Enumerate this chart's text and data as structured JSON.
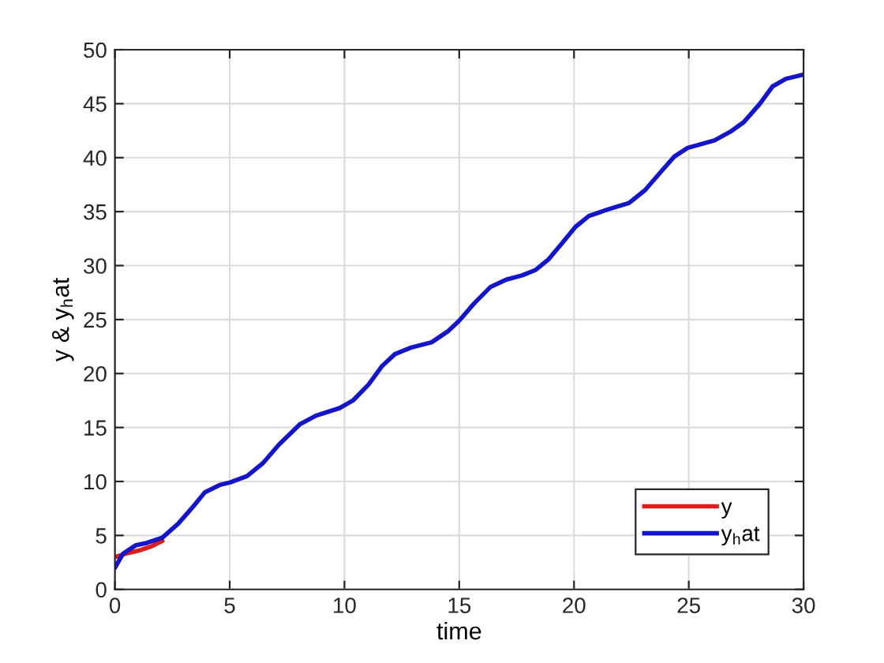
{
  "chart_data": {
    "type": "line",
    "xlabel": "time",
    "ylabel": "y & y$_{h}$at",
    "xlim": [
      0,
      30
    ],
    "ylim": [
      0,
      50
    ],
    "xticks": [
      0,
      5,
      10,
      15,
      20,
      25,
      30
    ],
    "yticks": [
      0,
      5,
      10,
      15,
      20,
      25,
      30,
      35,
      40,
      45,
      50
    ],
    "grid": true,
    "legend": "bottom right",
    "marker": "none",
    "line_style": "solid",
    "series": [
      {
        "name": "y",
        "color": "#dd1c1c",
        "x": [
          0,
          0.46,
          1.04,
          1.6,
          2.07
        ],
        "values": [
          3.0,
          3.3,
          3.6,
          4.0,
          4.5
        ]
      },
      {
        "name": "y$_{h}$at",
        "color": "#1414c8",
        "x": [
          0,
          0.35,
          0.92,
          1.38,
          2.07,
          2.76,
          3.34,
          3.92,
          4.6,
          5,
          5.76,
          6.45,
          7.14,
          8.06,
          8.76,
          9.79,
          10.37,
          11.06,
          11.64,
          12.2,
          12.9,
          13.8,
          14.5,
          15,
          15.65,
          16.35,
          17.05,
          17.74,
          18.33,
          18.9,
          19.49,
          20.07,
          20.65,
          21.47,
          22.4,
          23.1,
          23.79,
          24.37,
          24.95,
          26.12,
          26.81,
          27.4,
          28.1,
          28.65,
          29.23,
          30
        ],
        "values": [
          2.0,
          3.3,
          4.1,
          4.3,
          4.8,
          6.1,
          7.5,
          9.0,
          9.7,
          9.9,
          10.5,
          11.7,
          13.4,
          15.3,
          16.1,
          16.8,
          17.5,
          19.0,
          20.7,
          21.8,
          22.4,
          22.9,
          23.9,
          24.9,
          26.5,
          28.0,
          28.7,
          29.1,
          29.6,
          30.6,
          32.1,
          33.6,
          34.6,
          35.2,
          35.8,
          37.0,
          38.7,
          40.1,
          40.9,
          41.6,
          42.4,
          43.3,
          45.0,
          46.6,
          47.3,
          47.7
        ]
      }
    ]
  }
}
